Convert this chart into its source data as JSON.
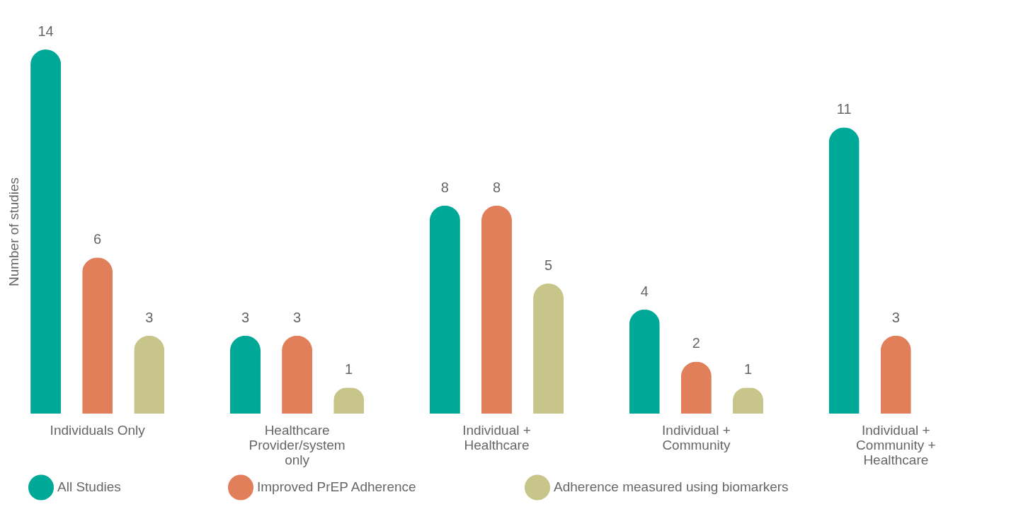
{
  "chart_data": {
    "type": "bar",
    "ylabel": "Number of studies",
    "categories": [
      "Individuals Only",
      "Healthcare Provider/system only",
      "Individual + Healthcare",
      "Individual + Community",
      "Individual + Community + Healthcare"
    ],
    "series": [
      {
        "name": "All Studies",
        "color": "#00a898",
        "values": [
          14,
          3,
          8,
          4,
          11
        ]
      },
      {
        "name": "Improved PrEP Adherence",
        "color": "#e07f5a",
        "values": [
          6,
          3,
          8,
          2,
          3
        ]
      },
      {
        "name": "Adherence measured using biomarkers",
        "color": "#c7c58a",
        "values": [
          3,
          1,
          5,
          1,
          null
        ]
      }
    ],
    "data_labels": true,
    "legend": "bottom",
    "grid": false
  }
}
